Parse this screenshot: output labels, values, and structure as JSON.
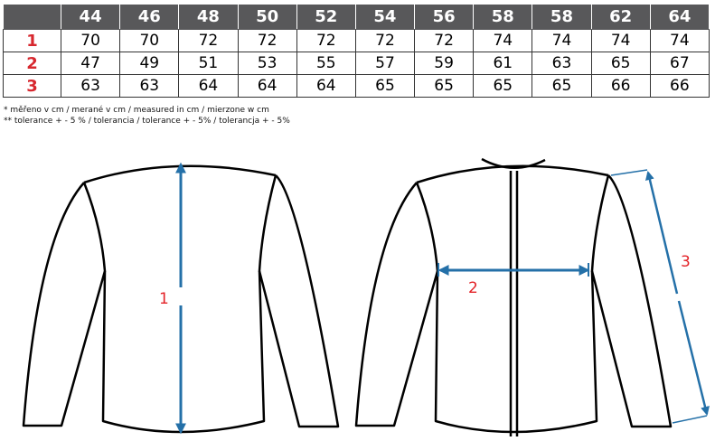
{
  "sizes": [
    "44",
    "46",
    "48",
    "50",
    "52",
    "54",
    "56",
    "58",
    "58",
    "62",
    "64"
  ],
  "rows": [
    {
      "label": "1",
      "values": [
        "70",
        "70",
        "72",
        "72",
        "72",
        "72",
        "72",
        "74",
        "74",
        "74",
        "74"
      ]
    },
    {
      "label": "2",
      "values": [
        "47",
        "49",
        "51",
        "53",
        "55",
        "57",
        "59",
        "61",
        "63",
        "65",
        "67"
      ]
    },
    {
      "label": "3",
      "values": [
        "63",
        "63",
        "64",
        "64",
        "64",
        "65",
        "65",
        "65",
        "65",
        "66",
        "66"
      ]
    }
  ],
  "notes": [
    "* měřeno v cm / merané v cm / measured in cm / mierzone w cm",
    "** tolerance + - 5 % / tolerancia / tolerance + - 5% / tolerancja + - 5%"
  ],
  "diagram": {
    "label1": "1",
    "label2": "2",
    "label3": "3",
    "arrow_color": "#2470a8",
    "label_color": "#e32227"
  }
}
